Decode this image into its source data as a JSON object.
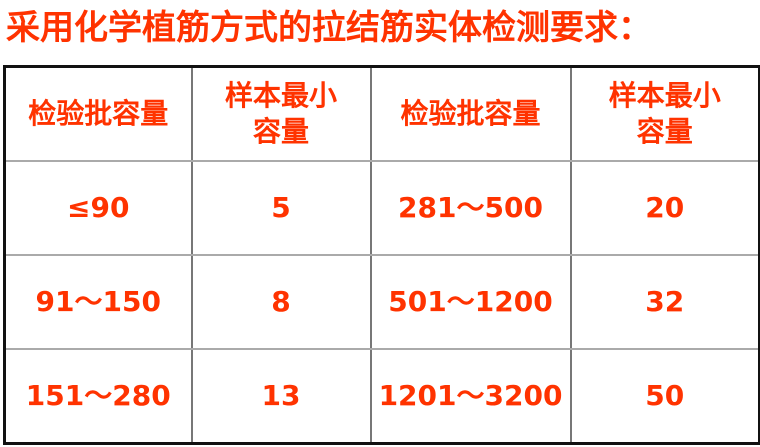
{
  "title": "采用化学植筋方式的拉结筋实体检测要求：",
  "accent_color": "#ff3300",
  "table": {
    "headers": [
      "检验批容量",
      "样本最小容量",
      "检验批容量",
      "样本最小容量"
    ],
    "rows": [
      [
        "≤90",
        "5",
        "281～500",
        "20"
      ],
      [
        "91～150",
        "8",
        "501～1200",
        "32"
      ],
      [
        "151～280",
        "13",
        "1201～3200",
        "50"
      ]
    ]
  }
}
